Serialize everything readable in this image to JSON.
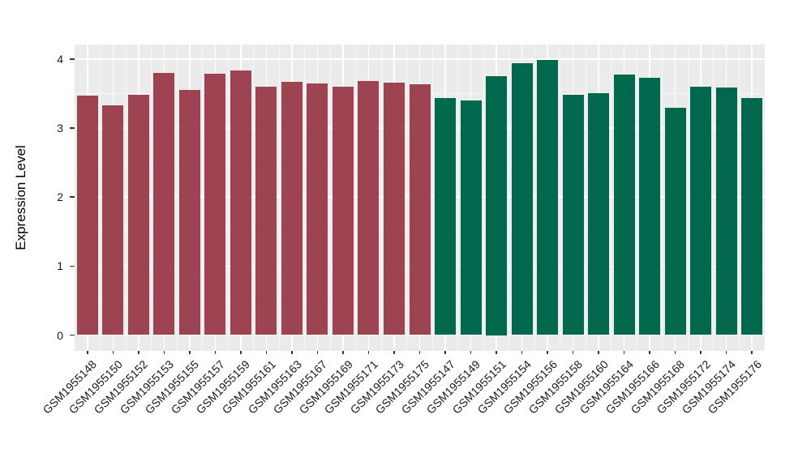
{
  "chart_data": {
    "type": "bar",
    "title": "",
    "xlabel": "",
    "ylabel": "Expression Level",
    "ylim": [
      -0.2,
      4.2
    ],
    "yticks": [
      0,
      1,
      2,
      3,
      4
    ],
    "ytick_labels": [
      "0",
      "1",
      "2",
      "3",
      "4"
    ],
    "yminor": [
      0.5,
      1.5,
      2.5,
      3.5
    ],
    "grid": true,
    "legend": false,
    "panel_background": "#EBEBEB",
    "gridline_color": "#FFFFFF",
    "tick_color": "#333333",
    "text_color": "#1A1A1A",
    "group_colors": {
      "left_group_red": "#9D4352",
      "right_group_green": "#00694D"
    },
    "categories": [
      "GSM1955148",
      "GSM1955150",
      "GSM1955152",
      "GSM1955153",
      "GSM1955155",
      "GSM1955157",
      "GSM1955159",
      "GSM1955161",
      "GSM1955163",
      "GSM1955167",
      "GSM1955169",
      "GSM1955171",
      "GSM1955173",
      "GSM1955175",
      "GSM1955147",
      "GSM1955149",
      "GSM1955151",
      "GSM1955154",
      "GSM1955156",
      "GSM1955158",
      "GSM1955160",
      "GSM1955164",
      "GSM1955166",
      "GSM1955168",
      "GSM1955172",
      "GSM1955174",
      "GSM1955176"
    ],
    "values": [
      3.47,
      3.33,
      3.48,
      3.8,
      3.55,
      3.79,
      3.84,
      3.6,
      3.67,
      3.65,
      3.6,
      3.68,
      3.66,
      3.63,
      3.43,
      3.4,
      3.75,
      3.94,
      3.99,
      3.48,
      3.51,
      3.77,
      3.73,
      3.3,
      3.6,
      3.59,
      3.43
    ],
    "colors": [
      "#9D4352",
      "#9D4352",
      "#9D4352",
      "#9D4352",
      "#9D4352",
      "#9D4352",
      "#9D4352",
      "#9D4352",
      "#9D4352",
      "#9D4352",
      "#9D4352",
      "#9D4352",
      "#9D4352",
      "#9D4352",
      "#00694D",
      "#00694D",
      "#00694D",
      "#00694D",
      "#00694D",
      "#00694D",
      "#00694D",
      "#00694D",
      "#00694D",
      "#00694D",
      "#00694D",
      "#00694D",
      "#00694D"
    ]
  }
}
